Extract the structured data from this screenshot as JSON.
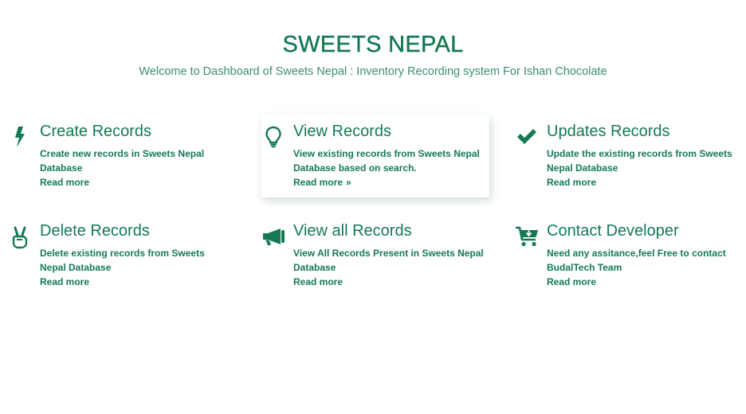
{
  "header": {
    "title": "SWEETS NEPAL",
    "subtitle": "Welcome to Dashboard of Sweets Nepal : Inventory Recording system For Ishan Chocolate"
  },
  "colors": {
    "accent": "#147a52",
    "subtitle": "#3d8e70"
  },
  "cards": [
    {
      "icon": "bolt-icon",
      "title": "Create Records",
      "description": "Create new records in Sweets Nepal Database",
      "link": "Read more"
    },
    {
      "icon": "lightbulb-icon",
      "title": "View Records",
      "description": "View existing records from Sweets Nepal Database based on search.",
      "link": "Read more",
      "link_chevron": "»"
    },
    {
      "icon": "checkmark-icon",
      "title": "Updates Records",
      "description": "Update the existing records from Sweets Nepal Database",
      "link": "Read more"
    },
    {
      "icon": "peace-hand-icon",
      "title": "Delete Records",
      "description": "Delete existing records from Sweets Nepal Database",
      "link": "Read more"
    },
    {
      "icon": "megaphone-icon",
      "title": "View all Records",
      "description": "View All Records Present in Sweets Nepal Database",
      "link": "Read more"
    },
    {
      "icon": "cart-download-icon",
      "title": "Contact Developer",
      "description": "Need any assitance,feel Free to contact BudalTech Team",
      "link": "Read more"
    }
  ]
}
